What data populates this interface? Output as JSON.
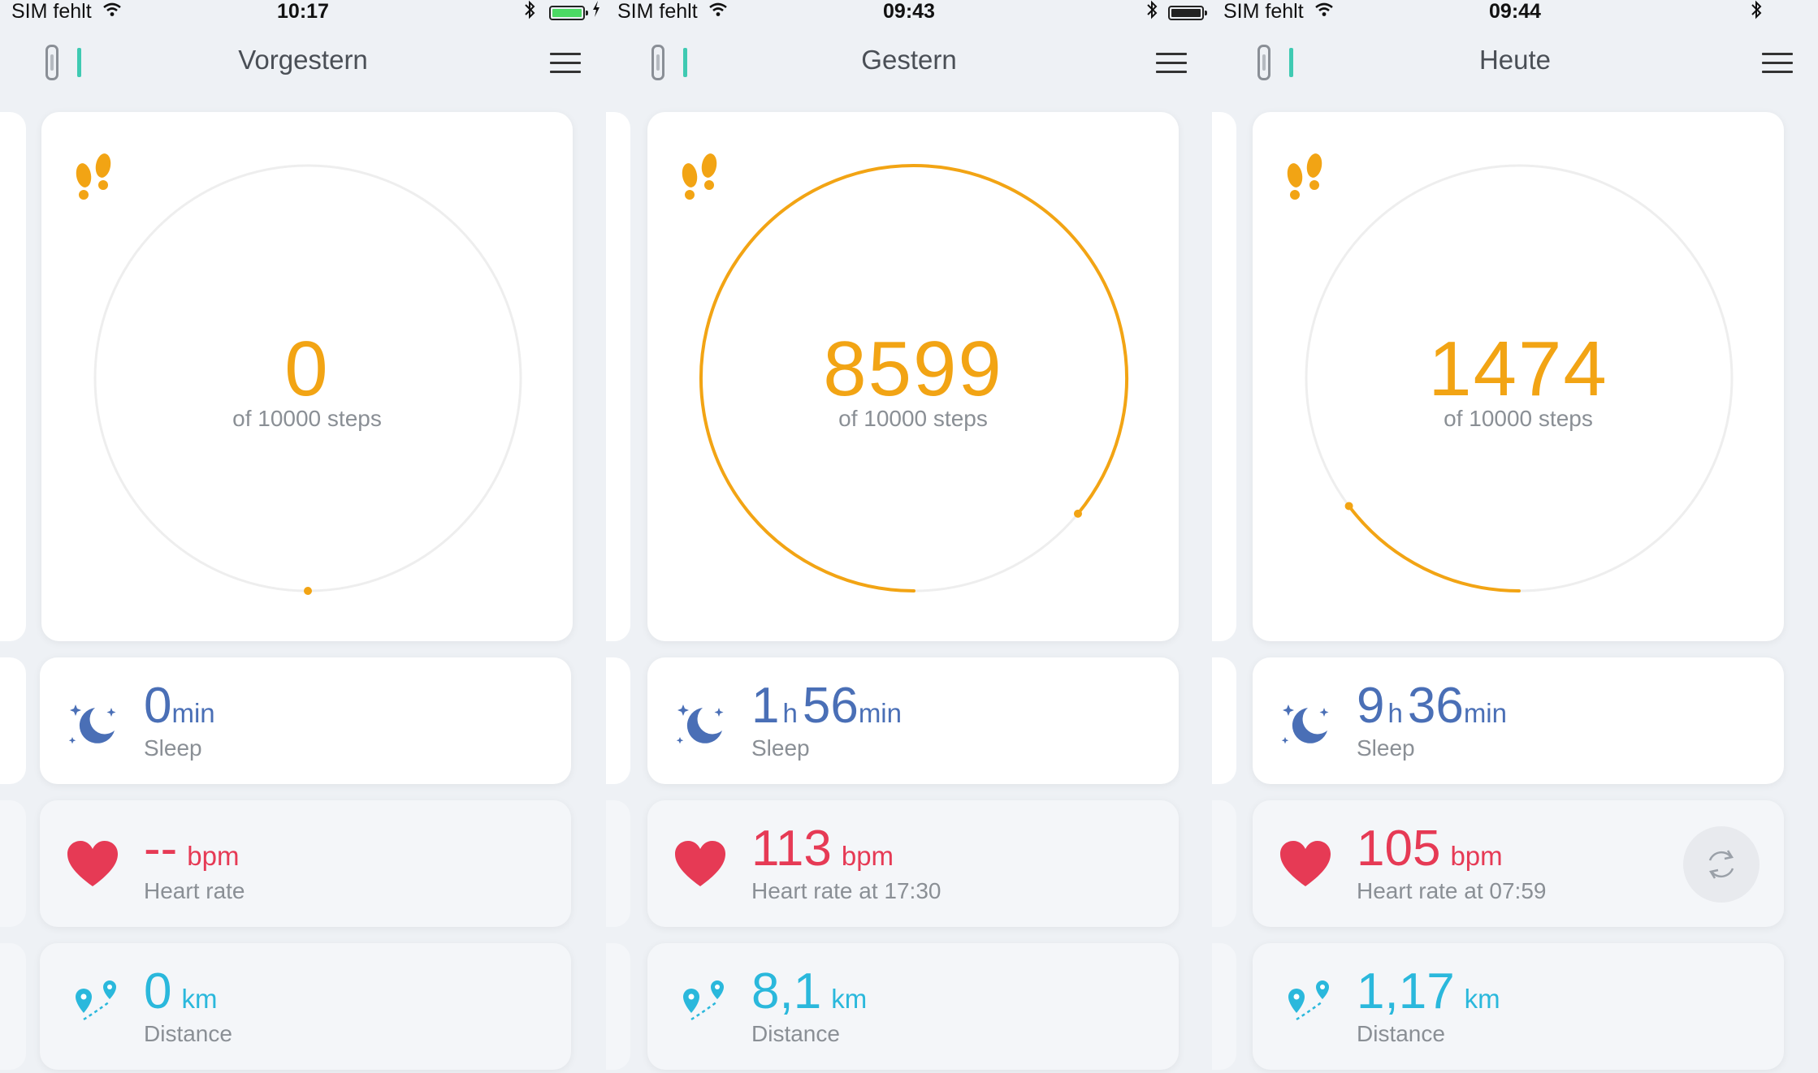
{
  "screens": [
    {
      "status": {
        "carrier": "SIM fehlt",
        "time": "10:17"
      },
      "header": {
        "title": "Vorgestern"
      },
      "steps": {
        "value": "0",
        "goal_label": "of 10000 steps",
        "progress": 0
      },
      "sleep": {
        "hours": "",
        "hours_unit": "",
        "minutes": "0",
        "minutes_unit": "min",
        "label": "Sleep"
      },
      "heart": {
        "value": "--",
        "unit": "bpm",
        "label": "Heart rate"
      },
      "distance": {
        "value": "0",
        "unit": "km",
        "label": "Distance"
      }
    },
    {
      "status": {
        "carrier": "SIM fehlt",
        "time": "09:43"
      },
      "header": {
        "title": "Gestern"
      },
      "steps": {
        "value": "8599",
        "goal_label": "of 10000 steps",
        "progress": 0.8599
      },
      "sleep": {
        "hours": "1",
        "hours_unit": "h",
        "minutes": "56",
        "minutes_unit": "min",
        "label": "Sleep"
      },
      "heart": {
        "value": "113",
        "unit": "bpm",
        "label": "Heart rate at 17:30"
      },
      "distance": {
        "value": "8,1",
        "unit": "km",
        "label": "Distance"
      }
    },
    {
      "status": {
        "carrier": "SIM fehlt",
        "time": "09:44"
      },
      "header": {
        "title": "Heute"
      },
      "steps": {
        "value": "1474",
        "goal_label": "of 10000 steps",
        "progress": 0.1474
      },
      "sleep": {
        "hours": "9",
        "hours_unit": "h",
        "minutes": "36",
        "minutes_unit": "min",
        "label": "Sleep"
      },
      "heart": {
        "value": "105",
        "unit": "bpm",
        "label": "Heart rate at 07:59"
      },
      "distance": {
        "value": "1,17",
        "unit": "km",
        "label": "Distance"
      }
    }
  ],
  "icons": {
    "steps": "footprints-icon",
    "sleep": "moon-stars-icon",
    "heart": "heart-icon",
    "distance": "map-pins-route-icon",
    "refresh": "refresh-icon",
    "menu": "hamburger-menu-icon",
    "device": "fitness-band-icon",
    "wifi": "wifi-icon",
    "bluetooth": "bluetooth-icon",
    "battery": "battery-icon"
  },
  "colors": {
    "steps": "#f2a414",
    "sleep": "#4a6fb6",
    "heart": "#e63a55",
    "distance": "#2ab8dc",
    "device_bar": "#3fcab2",
    "battery_charging": "#4cd964"
  }
}
